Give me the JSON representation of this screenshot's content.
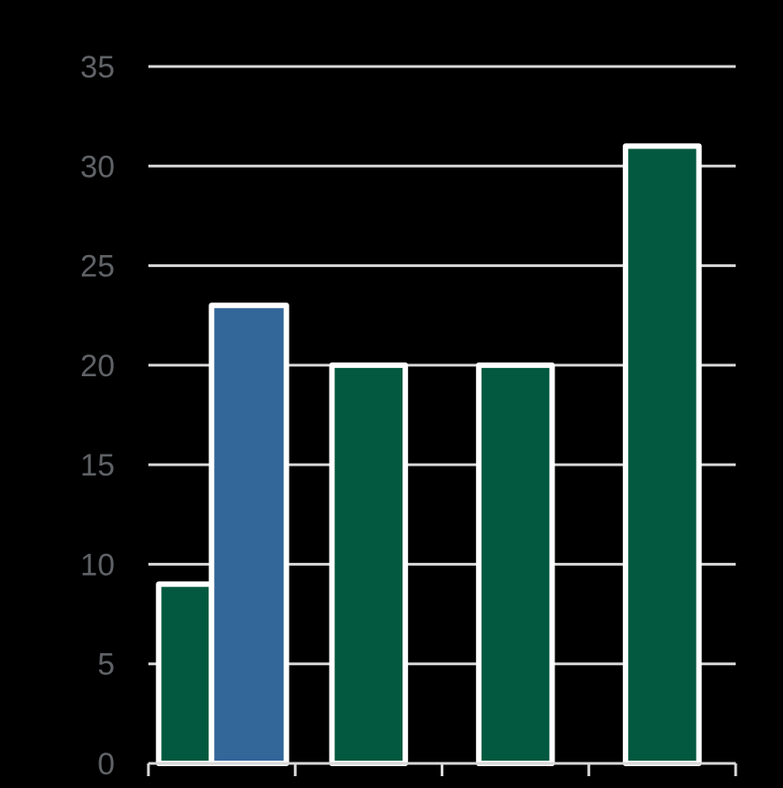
{
  "colors": {
    "background": "#000000",
    "grid": "#d9d9d9",
    "bar_outline": "#ffffff",
    "axis_text": "#5f6266"
  },
  "chart_data": {
    "type": "bar",
    "title": "",
    "xlabel": "",
    "ylabel": "",
    "ylim": [
      0,
      35
    ],
    "yticks": [
      "0",
      "5",
      "10",
      "15",
      "20",
      "25",
      "30",
      "35"
    ],
    "grid": true,
    "legend": "none",
    "bars": [
      {
        "group": 0,
        "value": 9,
        "color": "#03593f"
      },
      {
        "group": 0,
        "value": 23,
        "color": "#336699"
      },
      {
        "group": 1,
        "value": 20,
        "color": "#03593f"
      },
      {
        "group": 2,
        "value": 20,
        "color": "#03593f"
      },
      {
        "group": 3,
        "value": 31,
        "color": "#03593f"
      }
    ]
  }
}
